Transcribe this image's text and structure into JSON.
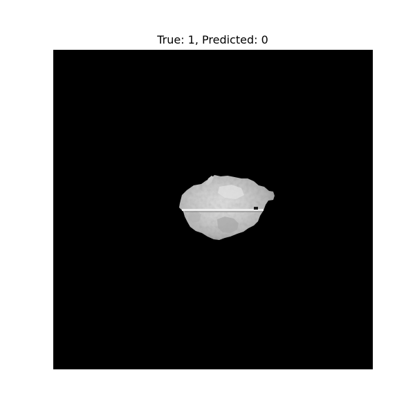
{
  "figure": {
    "title": "True: 1, Predicted: 0"
  },
  "image": {
    "background_color": "#000000",
    "subject": "grayscale-scan-blob",
    "tone_light": "#d6d6d6",
    "tone_mid": "#b9b9b9",
    "tone_dark": "#8f8f8f"
  }
}
